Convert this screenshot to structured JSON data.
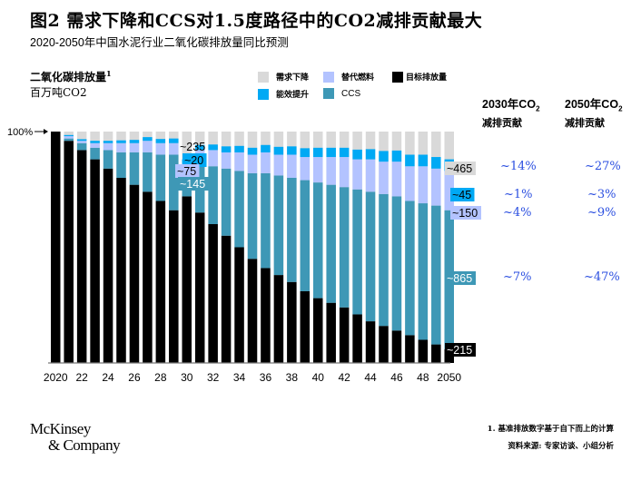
{
  "header": {
    "title": "图2 需求下降和CCS对1.5度路径中的CO2减排贡献最大",
    "subtitle": "2020-2050年中国水泥行业二氧化碳排放量同比预测"
  },
  "y_label": {
    "line1": "二氧化碳排放量",
    "sup": "1",
    "line2": "百万吨CO2"
  },
  "legend": [
    {
      "label": "需求下降",
      "color": "#d9d9d9"
    },
    {
      "label": "替代燃料",
      "color": "#b3c3ff"
    },
    {
      "label": "目标排放量",
      "color": "#000000"
    },
    {
      "label": "能效提升",
      "color": "#00a9f4"
    },
    {
      "label": "CCS",
      "color": "#3e98b6"
    }
  ],
  "contrib_table": {
    "col2030": {
      "head": "2030年CO",
      "sub": "2",
      "line2": "减排贡献"
    },
    "col2050": {
      "head": "2050年CO",
      "sub": "2",
      "line2": "减排贡献"
    },
    "rows": [
      {
        "name": "需求下降",
        "v2030": "~14%",
        "v2050": "~27%"
      },
      {
        "name": "能效提升",
        "v2030": "~1%",
        "v2050": "~3%"
      },
      {
        "name": "替代燃料",
        "v2030": "~4%",
        "v2050": "~9%"
      },
      {
        "name": "CCS",
        "v2030": "~7%",
        "v2050": "~47%"
      }
    ]
  },
  "chart_data": {
    "type": "bar",
    "stacked": true,
    "title": "图2 需求下降和CCS对1.5度路径中的CO2减排贡献最大",
    "ylabel": "二氧化碳排放量 百万吨CO2",
    "y_reference_label": "100%",
    "ylim": [
      0,
      100
    ],
    "units": "% of 2020 emissions (approx.)",
    "categories": [
      "2020",
      "2021",
      "2022",
      "2023",
      "2024",
      "2025",
      "2026",
      "2027",
      "2028",
      "2029",
      "2030",
      "2031",
      "2032",
      "2033",
      "2034",
      "2035",
      "2036",
      "2037",
      "2038",
      "2039",
      "2040",
      "2041",
      "2042",
      "2043",
      "2044",
      "2045",
      "2046",
      "2047",
      "2048",
      "2049",
      "2050"
    ],
    "tick_labels": [
      "2020",
      "22",
      "24",
      "26",
      "28",
      "30",
      "32",
      "34",
      "36",
      "38",
      "40",
      "42",
      "44",
      "46",
      "48",
      "2050"
    ],
    "series": [
      {
        "name": "目标排放量",
        "color": "#000000",
        "values": [
          100,
          96,
          92,
          88,
          84,
          80,
          77,
          74,
          70,
          66,
          72,
          65,
          60,
          55,
          50,
          45,
          41,
          38,
          35,
          31,
          28,
          26,
          24,
          21,
          18,
          16,
          14,
          12,
          10,
          8,
          6
        ]
      },
      {
        "name": "CCS",
        "color": "#3e98b6",
        "values": [
          0,
          1,
          3,
          5,
          8,
          11,
          14,
          17,
          20,
          24,
          9,
          21,
          25,
          29,
          33,
          37,
          41,
          43,
          45,
          48,
          50,
          51,
          52,
          54,
          56,
          57,
          58,
          58,
          59,
          60,
          60
        ]
      },
      {
        "name": "替代燃料",
        "color": "#b3c3ff",
        "values": [
          0,
          1,
          1,
          2,
          3,
          4,
          4,
          5,
          5,
          5,
          5,
          6,
          7,
          7,
          8,
          8,
          9,
          9,
          10,
          10,
          11,
          12,
          13,
          13,
          14,
          14,
          15,
          15,
          16,
          16,
          17
        ]
      },
      {
        "name": "能效提升",
        "color": "#00a9f4",
        "values": [
          0,
          0.5,
          0.7,
          1,
          1,
          1.2,
          1.4,
          1.6,
          1.8,
          2,
          2,
          2.2,
          2.4,
          2.6,
          2.8,
          3,
          3.2,
          3.4,
          3.6,
          3.8,
          4,
          4,
          4,
          4.2,
          4.4,
          4.6,
          4.8,
          5,
          5,
          5,
          5
        ]
      },
      {
        "name": "需求下降",
        "color": "#d9d9d9",
        "values": "remainder to 100%"
      }
    ],
    "annotations": [
      {
        "year": "2030",
        "series": "需求下降",
        "text": "~235"
      },
      {
        "year": "2030",
        "series": "能效提升",
        "text": "~20"
      },
      {
        "year": "2030",
        "series": "替代燃料",
        "text": "~75"
      },
      {
        "year": "2030",
        "series": "CCS",
        "text": "~145"
      },
      {
        "year": "2050",
        "series": "需求下降",
        "text": "~465"
      },
      {
        "year": "2050",
        "series": "能效提升",
        "text": "~45"
      },
      {
        "year": "2050",
        "series": "替代燃料",
        "text": "~150"
      },
      {
        "year": "2050",
        "series": "CCS",
        "text": "~865"
      },
      {
        "year": "2050",
        "series": "目标排放量",
        "text": "~215"
      }
    ]
  },
  "footer": {
    "logo_line1": "McKinsey",
    "logo_line2": "& Company",
    "note": "1. 基准排放数字基于自下而上的计算",
    "source": "资料来源: 专家访谈、小组分析"
  }
}
